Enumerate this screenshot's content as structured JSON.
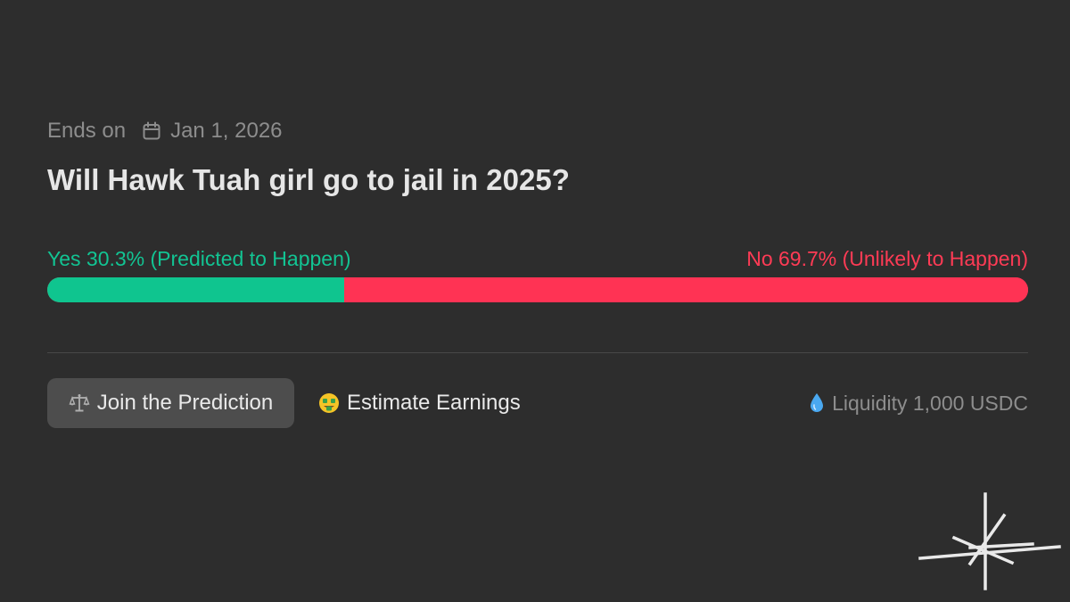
{
  "market": {
    "ends_label": "Ends on",
    "end_date": "Jan 1, 2026",
    "question": "Will Hawk Tuah girl go to jail in 2025?",
    "yes_label": "Yes 30.3% (Predicted to Happen)",
    "no_label": "No 69.7% (Unlikely to Happen)",
    "yes_percent": 30.3,
    "no_percent": 69.7,
    "colors": {
      "yes": "#0fc58f",
      "no": "#ff3354",
      "background": "#2d2d2d"
    }
  },
  "actions": {
    "join_label": "Join the Prediction",
    "join_icon": "balance-scale-icon",
    "estimate_label": "Estimate Earnings",
    "estimate_icon": "money-mouth-face-icon"
  },
  "liquidity": {
    "label": "Liquidity 1,000 USDC",
    "icon": "droplet-icon"
  },
  "brand": {
    "logo_icon": "starburst-logo"
  }
}
